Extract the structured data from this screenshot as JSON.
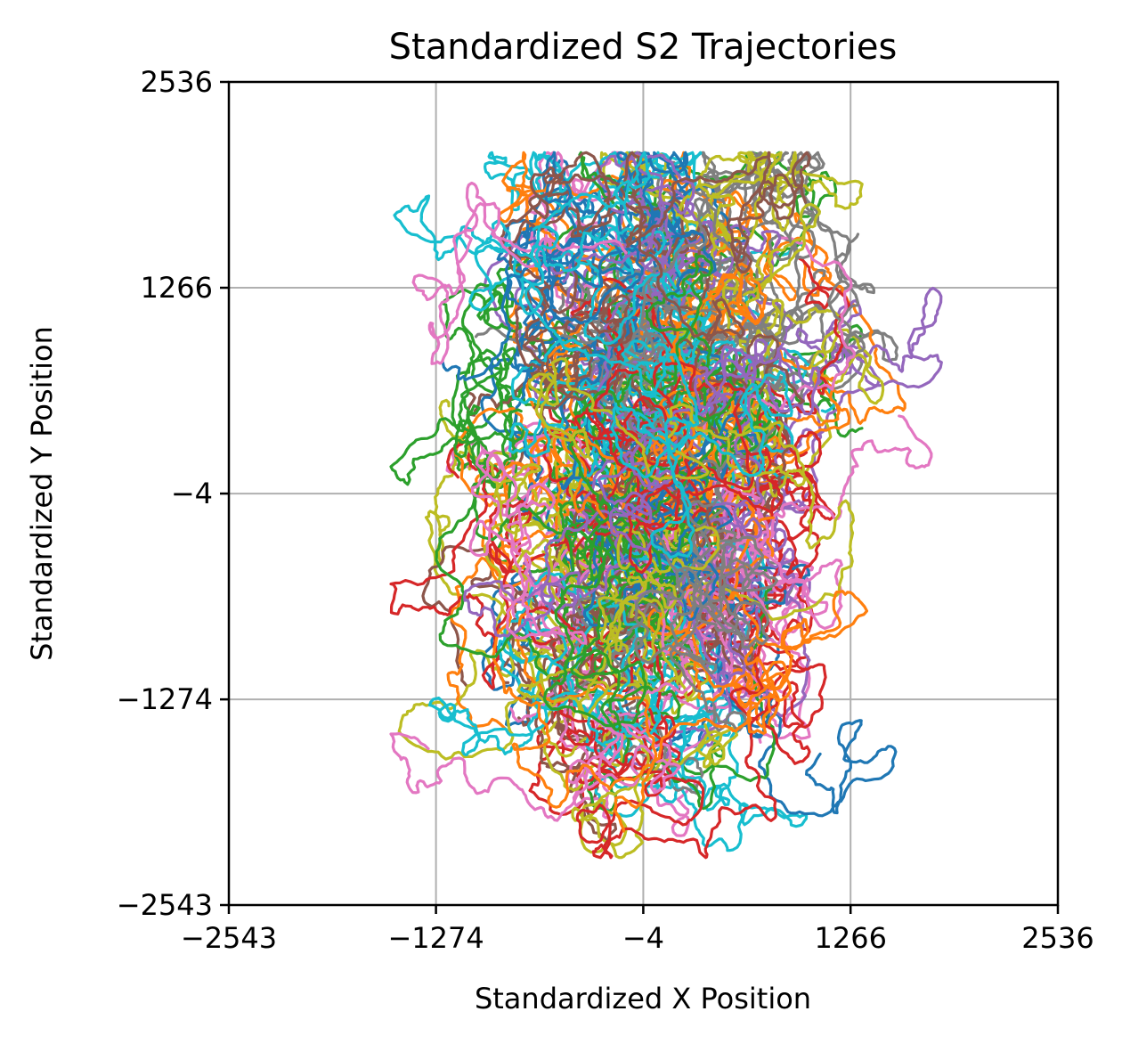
{
  "chart_data": {
    "type": "line",
    "title": "Standardized S2 Trajectories",
    "xlabel": "Standardized X Position",
    "ylabel": "Standardized Y Position",
    "xlim": [
      -2543,
      2536
    ],
    "ylim": [
      -2543,
      2536
    ],
    "xticks": [
      -2543,
      -1274,
      -4,
      1266,
      2536
    ],
    "yticks": [
      -2543,
      -1274,
      -4,
      1266,
      2536
    ],
    "xtick_labels": [
      "−2543",
      "−1274",
      "−4",
      "1266",
      "2536"
    ],
    "ytick_labels": [
      "−2543",
      "−1274",
      "−4",
      "1266",
      "2536"
    ],
    "grid": true,
    "legend": "none",
    "trajectory_count": 120,
    "series_colors": [
      "#1f77b4",
      "#ff7f0e",
      "#2ca02c",
      "#d62728",
      "#9467bd",
      "#8c564b",
      "#e377c2",
      "#7f7f7f",
      "#bcbd22",
      "#17becf"
    ]
  }
}
